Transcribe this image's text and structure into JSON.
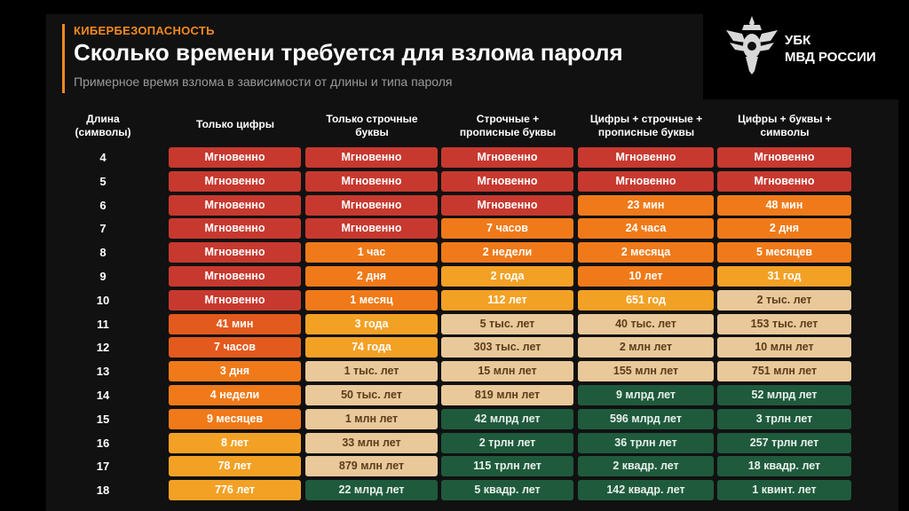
{
  "header": {
    "tag": "КИБЕРБЕЗОПАСНОСТЬ",
    "title": "Сколько  времени требуется для взлома пароля",
    "subtitle": "Примерное время взлома в зависимости от длины и типа пароля"
  },
  "logo": {
    "line1": "УБК",
    "line2": "МВД РОССИИ",
    "emblem": "double-headed-eagle-icon"
  },
  "colors": {
    "c1": "#c7392f",
    "c2": "#e35a1e",
    "c3": "#f07a19",
    "c4": "#f3a125",
    "c5": "#e9c89a",
    "c6": "#1f5a3d",
    "accent": "#f28a22"
  },
  "chart_data": {
    "type": "table",
    "columns": [
      [
        "Длина",
        "(символы)"
      ],
      [
        "Только цифры"
      ],
      [
        "Только строчные",
        "буквы"
      ],
      [
        "Строчные +",
        "прописные буквы"
      ],
      [
        "Цифры + строчные +",
        "прописные буквы"
      ],
      [
        "Цифры + буквы +",
        "символы"
      ]
    ],
    "rows": [
      {
        "length": "4",
        "cells": [
          {
            "t": "Мгновенно",
            "c": "c1"
          },
          {
            "t": "Мгновенно",
            "c": "c1"
          },
          {
            "t": "Мгновенно",
            "c": "c1"
          },
          {
            "t": "Мгновенно",
            "c": "c1"
          },
          {
            "t": "Мгновенно",
            "c": "c1"
          }
        ]
      },
      {
        "length": "5",
        "cells": [
          {
            "t": "Мгновенно",
            "c": "c1"
          },
          {
            "t": "Мгновенно",
            "c": "c1"
          },
          {
            "t": "Мгновенно",
            "c": "c1"
          },
          {
            "t": "Мгновенно",
            "c": "c1"
          },
          {
            "t": "Мгновенно",
            "c": "c1"
          }
        ]
      },
      {
        "length": "6",
        "cells": [
          {
            "t": "Мгновенно",
            "c": "c1"
          },
          {
            "t": "Мгновенно",
            "c": "c1"
          },
          {
            "t": "Мгновенно",
            "c": "c1"
          },
          {
            "t": "23 мин",
            "c": "c3"
          },
          {
            "t": "48 мин",
            "c": "c3"
          }
        ]
      },
      {
        "length": "7",
        "cells": [
          {
            "t": "Мгновенно",
            "c": "c1"
          },
          {
            "t": "Мгновенно",
            "c": "c1"
          },
          {
            "t": "7 часов",
            "c": "c3"
          },
          {
            "t": "24 часа",
            "c": "c3"
          },
          {
            "t": "2 дня",
            "c": "c3"
          }
        ]
      },
      {
        "length": "8",
        "cells": [
          {
            "t": "Мгновенно",
            "c": "c1"
          },
          {
            "t": "1 час",
            "c": "c3"
          },
          {
            "t": "2 недели",
            "c": "c3"
          },
          {
            "t": "2 месяца",
            "c": "c3"
          },
          {
            "t": "5 месяцев",
            "c": "c3"
          }
        ]
      },
      {
        "length": "9",
        "cells": [
          {
            "t": "Мгновенно",
            "c": "c1"
          },
          {
            "t": "2 дня",
            "c": "c3"
          },
          {
            "t": "2 года",
            "c": "c4"
          },
          {
            "t": "10 лет",
            "c": "c3"
          },
          {
            "t": "31 год",
            "c": "c4"
          }
        ]
      },
      {
        "length": "10",
        "cells": [
          {
            "t": "Мгновенно",
            "c": "c1"
          },
          {
            "t": "1 месяц",
            "c": "c3"
          },
          {
            "t": "112 лет",
            "c": "c4"
          },
          {
            "t": "651 год",
            "c": "c4"
          },
          {
            "t": "2 тыс. лет",
            "c": "c5"
          }
        ]
      },
      {
        "length": "11",
        "cells": [
          {
            "t": "41 мин",
            "c": "c2"
          },
          {
            "t": "3 года",
            "c": "c4"
          },
          {
            "t": "5 тыс. лет",
            "c": "c5"
          },
          {
            "t": "40 тыс. лет",
            "c": "c5"
          },
          {
            "t": "153 тыс. лет",
            "c": "c5"
          }
        ]
      },
      {
        "length": "12",
        "cells": [
          {
            "t": "7 часов",
            "c": "c2"
          },
          {
            "t": "74 года",
            "c": "c4"
          },
          {
            "t": "303 тыс. лет",
            "c": "c5"
          },
          {
            "t": "2 млн лет",
            "c": "c5"
          },
          {
            "t": "10 млн лет",
            "c": "c5"
          }
        ]
      },
      {
        "length": "13",
        "cells": [
          {
            "t": "3 дня",
            "c": "c3"
          },
          {
            "t": "1 тыс. лет",
            "c": "c5"
          },
          {
            "t": "15 млн лет",
            "c": "c5"
          },
          {
            "t": "155 млн лет",
            "c": "c5"
          },
          {
            "t": "751 млн лет",
            "c": "c5"
          }
        ]
      },
      {
        "length": "14",
        "cells": [
          {
            "t": "4 недели",
            "c": "c3"
          },
          {
            "t": "50 тыс. лет",
            "c": "c5"
          },
          {
            "t": "819 млн лет",
            "c": "c5"
          },
          {
            "t": "9 млрд лет",
            "c": "c6"
          },
          {
            "t": "52 млрд лет",
            "c": "c6"
          }
        ]
      },
      {
        "length": "15",
        "cells": [
          {
            "t": "9 месяцев",
            "c": "c3"
          },
          {
            "t": "1 млн лет",
            "c": "c5"
          },
          {
            "t": "42 млрд лет",
            "c": "c6"
          },
          {
            "t": "596 млрд лет",
            "c": "c6"
          },
          {
            "t": "3 трлн лет",
            "c": "c6"
          }
        ]
      },
      {
        "length": "16",
        "cells": [
          {
            "t": "8 лет",
            "c": "c4"
          },
          {
            "t": "33 млн лет",
            "c": "c5"
          },
          {
            "t": "2 трлн лет",
            "c": "c6"
          },
          {
            "t": "36 трлн лет",
            "c": "c6"
          },
          {
            "t": "257 трлн лет",
            "c": "c6"
          }
        ]
      },
      {
        "length": "17",
        "cells": [
          {
            "t": "78 лет",
            "c": "c4"
          },
          {
            "t": "879 млн лет",
            "c": "c5"
          },
          {
            "t": "115 трлн лет",
            "c": "c6"
          },
          {
            "t": "2 квадр. лет",
            "c": "c6"
          },
          {
            "t": "18 квадр. лет",
            "c": "c6"
          }
        ]
      },
      {
        "length": "18",
        "cells": [
          {
            "t": "776 лет",
            "c": "c4"
          },
          {
            "t": "22 млрд лет",
            "c": "c6"
          },
          {
            "t": "5 квадр. лет",
            "c": "c6"
          },
          {
            "t": "142 квадр. лет",
            "c": "c6"
          },
          {
            "t": "1 квинт. лет",
            "c": "c6"
          }
        ]
      }
    ]
  }
}
